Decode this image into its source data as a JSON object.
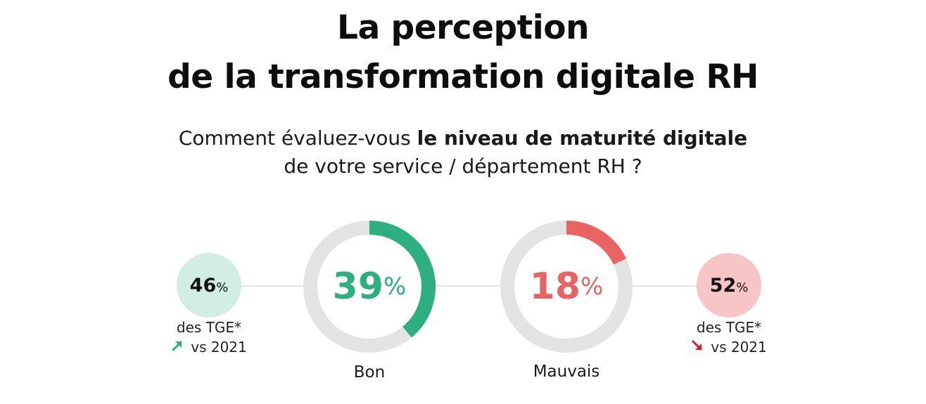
{
  "title": {
    "line1": "La perception",
    "line2": "de la transformation digitale RH"
  },
  "question": {
    "line1_normal": "Comment évaluez-vous ",
    "line1_bold": "le niveau de maturité digitale",
    "line2": "de votre service / département RH ?"
  },
  "colors": {
    "green": "#2daf7f",
    "red": "#ea6363",
    "track": "#e3e3e3",
    "green_light": "#d2ede4",
    "red_light": "#f7c5c5",
    "arrow_red": "#d81e2b"
  },
  "chart_data": {
    "type": "donut",
    "series": [
      {
        "name": "Bon",
        "value": 39,
        "unit": "%",
        "color": "#2daf7f",
        "comparison": {
          "value": 46,
          "unit": "%",
          "label": "des TGE*",
          "trend": "up",
          "trend_icon": "arrow-up-right-icon",
          "vs": "vs 2021"
        }
      },
      {
        "name": "Mauvais",
        "value": 18,
        "unit": "%",
        "color": "#ea6363",
        "comparison": {
          "value": 52,
          "unit": "%",
          "label": "des TGE*",
          "trend": "down",
          "trend_icon": "arrow-down-right-icon",
          "vs": "vs 2021"
        }
      }
    ]
  }
}
